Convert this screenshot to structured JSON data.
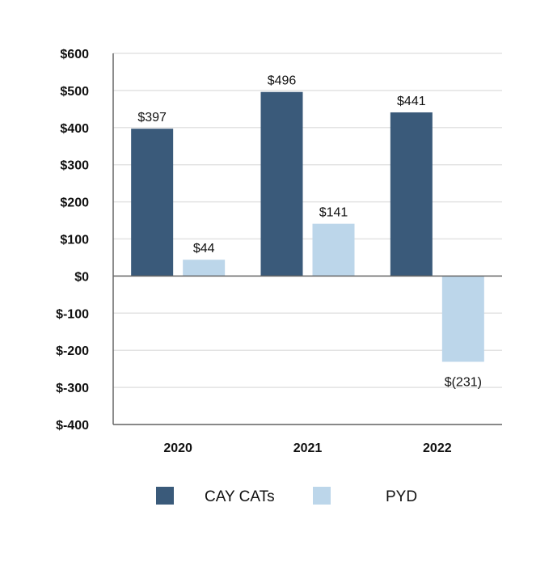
{
  "chart_data": {
    "type": "bar",
    "categories": [
      "2020",
      "2021",
      "2022"
    ],
    "series": [
      {
        "name": "CAY CATs",
        "color": "#3a5a7a",
        "values": [
          397,
          496,
          441
        ],
        "labels": [
          "$397",
          "$496",
          "$441"
        ]
      },
      {
        "name": "PYD",
        "color": "#bcd6ea",
        "values": [
          44,
          141,
          -231
        ],
        "labels": [
          "$44",
          "$141",
          "$(231)"
        ]
      }
    ],
    "ylim": [
      -400,
      600
    ],
    "yticks": [
      600,
      500,
      400,
      300,
      200,
      100,
      0,
      -100,
      -200,
      -300,
      -400
    ],
    "ytick_labels": [
      "$600",
      "$500",
      "$400",
      "$300",
      "$200",
      "$100",
      "$0",
      "$-100",
      "$-200",
      "$-300",
      "$-400"
    ],
    "grid": true,
    "legend_position": "bottom"
  }
}
